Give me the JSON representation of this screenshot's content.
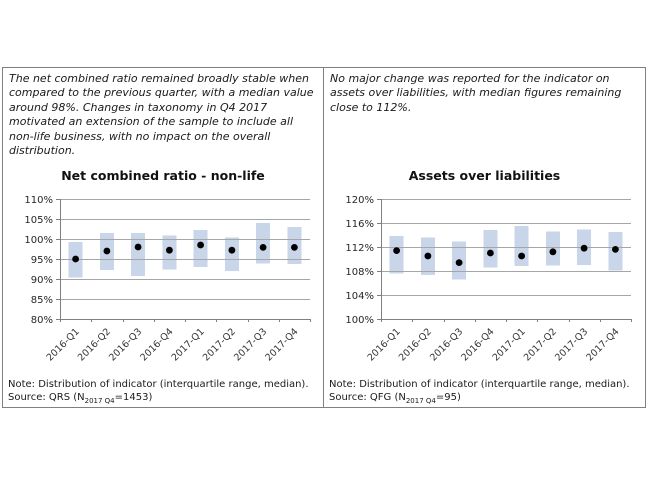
{
  "page": {
    "background": "#ffffff",
    "border_color": "#808080"
  },
  "panels": [
    {
      "id": "net-combined-ratio",
      "commentary": "The net combined ratio remained broadly stable when compared to the previous quarter, with a median value around 98%. Changes in taxonomy in Q4 2017 motivated an extension of the sample to include all non-life business, with no impact on the overall distribution.",
      "note": "Note: Distribution of indicator (interquartile range, median).",
      "source_prefix": "Source: QRS (N",
      "source_subscript": "2017 Q4",
      "source_suffix": "=1453)"
    },
    {
      "id": "assets-over-liabilities",
      "commentary": "No major change was reported for the indicator on assets over liabilities, with median figures remaining close to 112%.",
      "note": "Note: Distribution of indicator (interquartile range, median).",
      "source_prefix": "Source: QFG (N",
      "source_subscript": "2017 Q4",
      "source_suffix": "=95)"
    }
  ],
  "chart_data": [
    {
      "type": "boxplot",
      "title": "Net combined ratio - non-life",
      "categories": [
        "2016-Q1",
        "2016-Q2",
        "2016-Q3",
        "2016-Q4",
        "2017-Q1",
        "2017-Q2",
        "2017-Q3",
        "2017-Q4"
      ],
      "series": [
        {
          "name": "interquartile range",
          "low": [
            90.4,
            92.3,
            90.7,
            92.4,
            93.0,
            92.0,
            93.9,
            93.8
          ],
          "high": [
            99.2,
            101.5,
            101.5,
            100.9,
            102.2,
            100.4,
            104.0,
            103.0
          ]
        },
        {
          "name": "median",
          "values": [
            95.0,
            97.0,
            98.0,
            97.2,
            98.5,
            97.2,
            97.9,
            97.9
          ]
        }
      ],
      "ylim": [
        80,
        110
      ],
      "ytick_step": 5,
      "ytick_suffix": "%",
      "grid": true,
      "legend": "none",
      "bar_color": "#c9d6ea",
      "dot_color": "#000000",
      "grid_color": "#a6a6a6",
      "axis_color": "#808080",
      "label_color": "#333333"
    },
    {
      "type": "boxplot",
      "title": "Assets over liabilities",
      "categories": [
        "2016-Q1",
        "2016-Q2",
        "2016-Q3",
        "2016-Q4",
        "2017-Q1",
        "2017-Q2",
        "2017-Q3",
        "2017-Q4"
      ],
      "series": [
        {
          "name": "interquartile range",
          "low": [
            107.6,
            107.3,
            106.6,
            108.6,
            108.8,
            108.9,
            109.0,
            108.1
          ],
          "high": [
            113.8,
            113.6,
            112.9,
            114.8,
            115.5,
            114.6,
            114.9,
            114.5
          ]
        },
        {
          "name": "median",
          "values": [
            111.4,
            110.5,
            109.4,
            111.0,
            110.5,
            111.2,
            111.8,
            111.6
          ]
        }
      ],
      "ylim": [
        100,
        120
      ],
      "ytick_step": 4,
      "ytick_suffix": "%",
      "grid": true,
      "legend": "none",
      "bar_color": "#c9d6ea",
      "dot_color": "#000000",
      "grid_color": "#a6a6a6",
      "axis_color": "#808080",
      "label_color": "#333333"
    }
  ]
}
